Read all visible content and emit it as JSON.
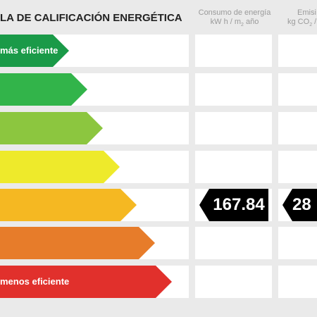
{
  "header": {
    "title": "LA DE CALIFICACIÓN ENERGÉTICA",
    "col1": {
      "line1": "Consumo de energía",
      "line2_pre": "kW h / m",
      "line2_sub": "2",
      "line2_post": " año"
    },
    "col2": {
      "line1": "Emisi",
      "line2_pre": "kg CO",
      "line2_sub": "2",
      "line2_post": " / m"
    }
  },
  "bands": [
    {
      "label": "más eficiente",
      "color": "#1a9a48"
    },
    {
      "label": "",
      "color": "#32b44a"
    },
    {
      "label": "",
      "color": "#8cc63f"
    },
    {
      "label": "",
      "color": "#eeea2b"
    },
    {
      "label": "",
      "color": "#f5b822"
    },
    {
      "label": "",
      "color": "#e77c2a"
    },
    {
      "label": "menos eficiente",
      "color": "#e1302c"
    }
  ],
  "rating": {
    "consumo_value": "167.84",
    "emisiones_value": "28"
  }
}
